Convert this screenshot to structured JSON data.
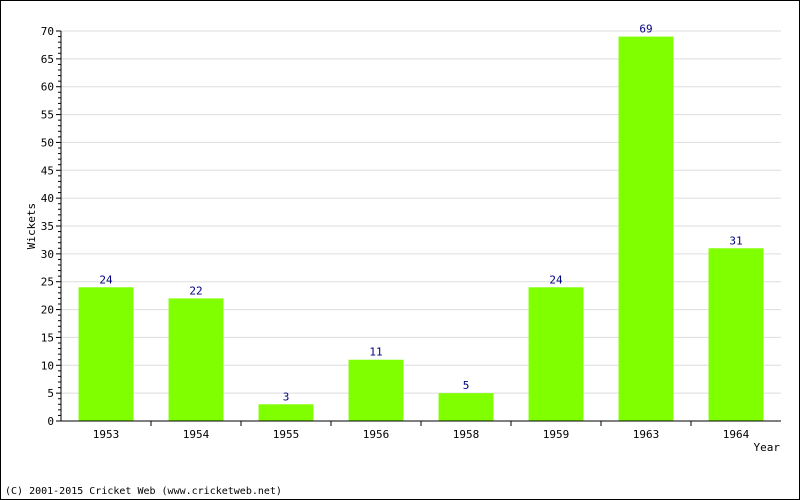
{
  "chart_data": {
    "type": "bar",
    "categories": [
      "1953",
      "1954",
      "1955",
      "1956",
      "1958",
      "1959",
      "1963",
      "1964"
    ],
    "values": [
      24,
      22,
      3,
      11,
      5,
      24,
      69,
      31
    ],
    "xlabel": "Year",
    "ylabel": "Wickets",
    "ylim": [
      0,
      70
    ],
    "yticks": [
      0,
      5,
      10,
      15,
      20,
      25,
      30,
      35,
      40,
      45,
      50,
      55,
      60,
      65,
      70
    ],
    "grid": true,
    "bar_color": "#7fff00",
    "label_color": "#000080"
  },
  "footer": {
    "copyright": "(C) 2001-2015 Cricket Web (www.cricketweb.net)"
  }
}
